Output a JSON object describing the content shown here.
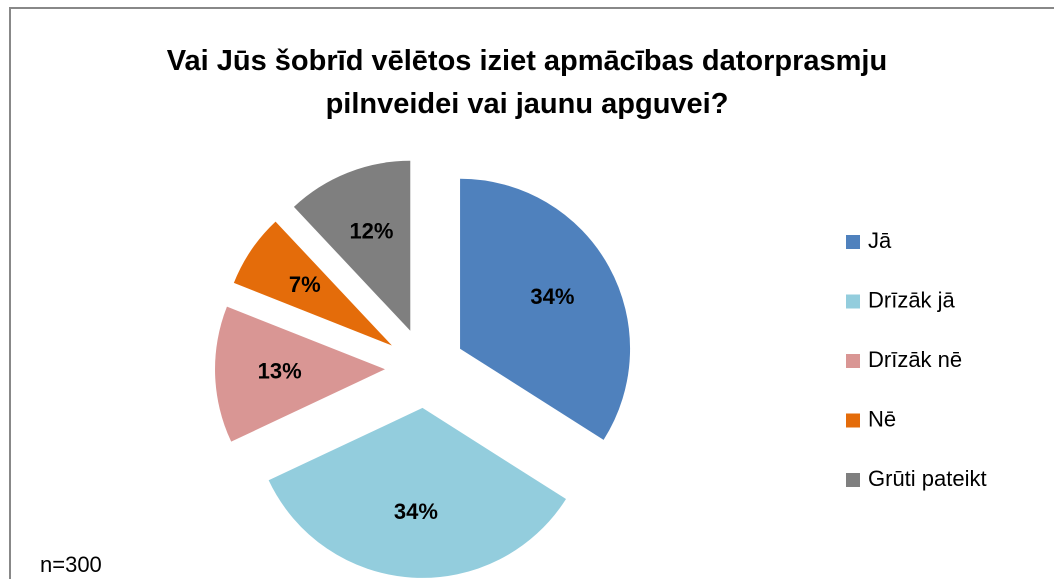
{
  "chart_data": {
    "type": "pie",
    "title": "Vai Jūs šobrīd vēlētos iziet apmācības datorprasmju pilnveidei vai jaunu apguvei?",
    "categories": [
      "Jā",
      "Drīzāk jā",
      "Drīzāk nē",
      "Nē",
      "Grūti pateikt"
    ],
    "values": [
      34,
      34,
      13,
      7,
      12
    ],
    "value_labels": [
      "34%",
      "34%",
      "13%",
      "7%",
      "12%"
    ],
    "colors": [
      "#4f81bd",
      "#93cddd",
      "#d99694",
      "#e46c0a",
      "#7f7f7f"
    ],
    "annotation": "n=300",
    "legend": "right"
  }
}
